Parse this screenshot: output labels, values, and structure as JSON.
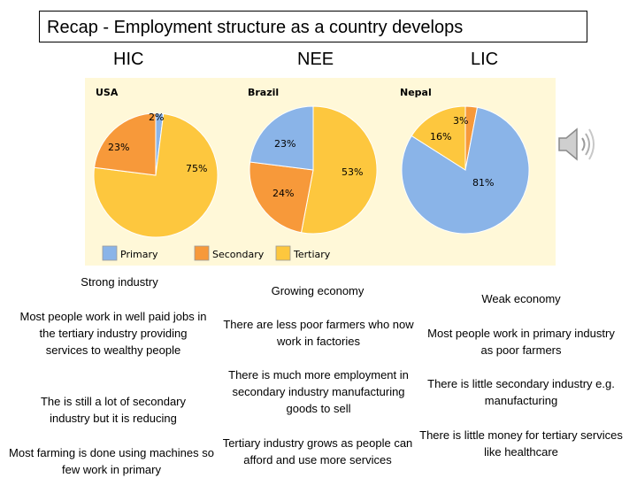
{
  "title": "Recap  - Employment structure as a country develops",
  "columns": {
    "hic": "HIC",
    "nee": "NEE",
    "lic": "LIC"
  },
  "chart_data": {
    "type": "pie",
    "charts": [
      {
        "country": "USA",
        "values": {
          "primary": 2,
          "secondary": 23,
          "tertiary": 75
        },
        "labels": {
          "primary": "2%",
          "secondary": "23%",
          "tertiary": "75%"
        }
      },
      {
        "country": "Brazil",
        "values": {
          "primary": 23,
          "secondary": 24,
          "tertiary": 53
        },
        "labels": {
          "primary": "23%",
          "secondary": "24%",
          "tertiary": "53%"
        }
      },
      {
        "country": "Nepal",
        "values": {
          "primary": 81,
          "secondary": 3,
          "tertiary": 16
        },
        "labels": {
          "primary": "81%",
          "secondary": "3%",
          "tertiary": "16%"
        }
      }
    ],
    "legend": {
      "primary": "Primary",
      "secondary": "Secondary",
      "tertiary": "Tertiary"
    },
    "colors": {
      "primary": "#8ab4e8",
      "secondary": "#f7993a",
      "tertiary": "#fdc73e",
      "panel": "#fff8d8"
    }
  },
  "hic": {
    "heading": "Strong industry",
    "point1": "Most people work in well paid jobs in the tertiary industry providing services to wealthy people",
    "point2": "The is still a lot of secondary industry but it is reducing",
    "point3": "Most farming is done using machines so few work in primary"
  },
  "nee": {
    "heading": "Growing economy",
    "point1": "There are less poor farmers who now work in factories",
    "point2": "There is much more employment in secondary industry manufacturing goods to sell",
    "point3": "Tertiary industry grows as people can afford and use more services"
  },
  "lic": {
    "heading": "Weak economy",
    "point1": "Most people work in primary industry as poor farmers",
    "point2": "There is little secondary industry e.g. manufacturing",
    "point3": "There is little money for tertiary services like healthcare"
  },
  "icons": {
    "audio": "speaker-icon"
  }
}
